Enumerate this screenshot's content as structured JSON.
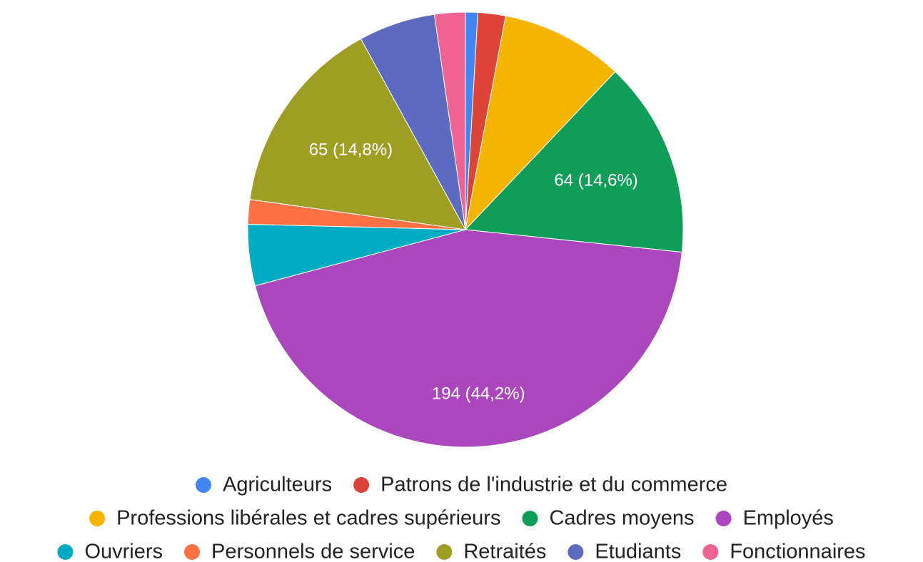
{
  "chart_data": {
    "type": "pie",
    "categories": [
      "Agriculteurs",
      "Patrons de l'industrie et du commerce",
      "Professions libérales et cadres supérieurs",
      "Cadres moyens",
      "Employés",
      "Ouvriers",
      "Personnels de service",
      "Retraités",
      "Etudiants",
      "Fonctionnaires"
    ],
    "values": [
      4,
      9,
      40,
      64,
      194,
      20,
      8,
      65,
      25,
      10
    ],
    "value_labels": [
      null,
      null,
      null,
      "64 (14,6%)",
      "194 (44,2%)",
      null,
      null,
      "65 (14,8%)",
      null,
      null
    ],
    "colors": [
      "#4285f4",
      "#db4437",
      "#f4b400",
      "#0f9d58",
      "#ab47bc",
      "#00acc1",
      "#ff7043",
      "#9e9d24",
      "#5c6bc0",
      "#f06292"
    ],
    "legend": "bottom"
  }
}
